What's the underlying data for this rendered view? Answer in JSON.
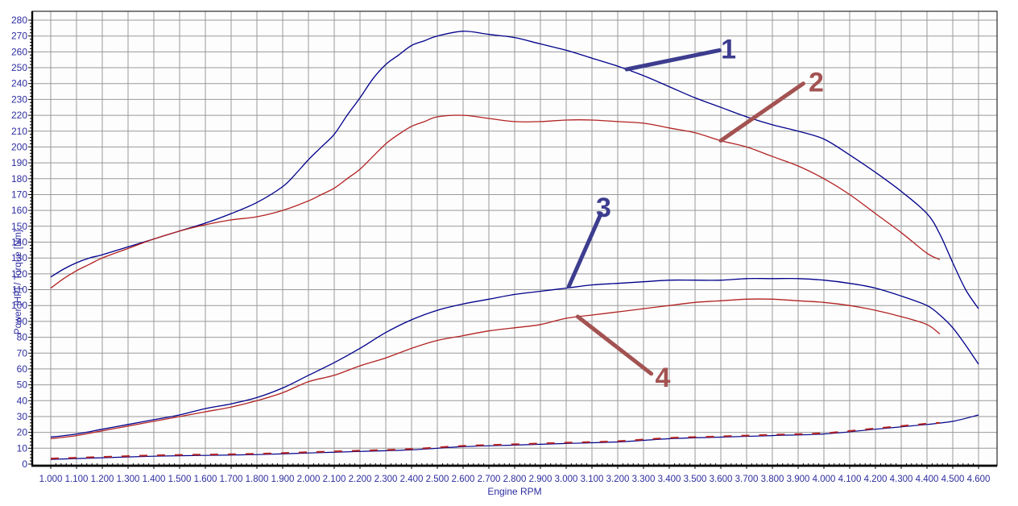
{
  "axes": {
    "x_title": "Engine RPM",
    "y_title": "Power [HP] / Torque [Nm]"
  },
  "colors": {
    "curve_blue": "#00008b",
    "curve_red": "#b22222",
    "label_blue": "#3d3d8f",
    "label_red": "#a35252",
    "axis_text": "#2d2da0",
    "grid": "#999999",
    "border": "#000000"
  },
  "chart_data": {
    "type": "line",
    "title": "",
    "xlabel": "Engine RPM",
    "ylabel": "Power [HP] / Torque [Nm]",
    "xlim": [
      1000,
      4600
    ],
    "ylim": [
      0,
      280
    ],
    "grid": true,
    "legend_position": "none",
    "x_tick_labels": [
      "1.000",
      "1.100",
      "1.200",
      "1.300",
      "1.400",
      "1.500",
      "1.600",
      "1.700",
      "1.800",
      "1.900",
      "2.000",
      "2.100",
      "2.200",
      "2.300",
      "2.400",
      "2.500",
      "2.600",
      "2.700",
      "2.800",
      "2.900",
      "3.000",
      "3.100",
      "3.200",
      "3.300",
      "3.400",
      "3.500",
      "3.600",
      "3.700",
      "3.800",
      "3.900",
      "4.000",
      "4.100",
      "4.200",
      "4.300",
      "4.400",
      "4.500",
      "4.600"
    ],
    "x_tick_values": [
      1000,
      1100,
      1200,
      1300,
      1400,
      1500,
      1600,
      1700,
      1800,
      1900,
      2000,
      2100,
      2200,
      2300,
      2400,
      2500,
      2600,
      2700,
      2800,
      2900,
      3000,
      3100,
      3200,
      3300,
      3400,
      3500,
      3600,
      3700,
      3800,
      3900,
      4000,
      4100,
      4200,
      4300,
      4400,
      4500,
      4600
    ],
    "y_tick_values": [
      0,
      10,
      20,
      30,
      40,
      50,
      60,
      70,
      80,
      90,
      100,
      110,
      120,
      130,
      140,
      150,
      160,
      170,
      180,
      190,
      200,
      210,
      220,
      230,
      240,
      250,
      260,
      270,
      280
    ],
    "x_minor_step": 20,
    "y_minor_step": 2,
    "series": [
      {
        "id": "torque-curve-1",
        "label": "1",
        "color": "#00008b",
        "dash": "",
        "width": 1.3,
        "points": [
          [
            1000,
            118
          ],
          [
            1050,
            123
          ],
          [
            1100,
            127
          ],
          [
            1150,
            130
          ],
          [
            1200,
            132
          ],
          [
            1300,
            137
          ],
          [
            1400,
            142
          ],
          [
            1500,
            147
          ],
          [
            1600,
            152
          ],
          [
            1700,
            158
          ],
          [
            1800,
            165
          ],
          [
            1900,
            175
          ],
          [
            1950,
            183
          ],
          [
            2000,
            192
          ],
          [
            2050,
            200
          ],
          [
            2100,
            208
          ],
          [
            2150,
            220
          ],
          [
            2200,
            231
          ],
          [
            2250,
            243
          ],
          [
            2300,
            252
          ],
          [
            2350,
            258
          ],
          [
            2400,
            264
          ],
          [
            2450,
            267
          ],
          [
            2500,
            270
          ],
          [
            2600,
            273
          ],
          [
            2700,
            271
          ],
          [
            2800,
            269
          ],
          [
            2900,
            265
          ],
          [
            3000,
            261
          ],
          [
            3100,
            256
          ],
          [
            3200,
            251
          ],
          [
            3300,
            245
          ],
          [
            3400,
            238
          ],
          [
            3500,
            231
          ],
          [
            3600,
            225
          ],
          [
            3700,
            219
          ],
          [
            3800,
            214
          ],
          [
            3900,
            210
          ],
          [
            4000,
            205
          ],
          [
            4100,
            195
          ],
          [
            4200,
            184
          ],
          [
            4300,
            172
          ],
          [
            4400,
            158
          ],
          [
            4450,
            145
          ],
          [
            4500,
            127
          ],
          [
            4550,
            110
          ],
          [
            4600,
            98
          ]
        ]
      },
      {
        "id": "torque-curve-2",
        "label": "2",
        "color": "#b22222",
        "dash": "",
        "width": 1.3,
        "points": [
          [
            1000,
            111
          ],
          [
            1050,
            117
          ],
          [
            1100,
            122
          ],
          [
            1150,
            126
          ],
          [
            1200,
            130
          ],
          [
            1300,
            136
          ],
          [
            1400,
            142
          ],
          [
            1500,
            147
          ],
          [
            1600,
            151
          ],
          [
            1700,
            154
          ],
          [
            1800,
            156
          ],
          [
            1900,
            160
          ],
          [
            2000,
            166
          ],
          [
            2050,
            170
          ],
          [
            2100,
            174
          ],
          [
            2150,
            180
          ],
          [
            2200,
            186
          ],
          [
            2250,
            194
          ],
          [
            2300,
            202
          ],
          [
            2350,
            208
          ],
          [
            2400,
            213
          ],
          [
            2450,
            216
          ],
          [
            2500,
            219
          ],
          [
            2600,
            220
          ],
          [
            2700,
            218
          ],
          [
            2800,
            216
          ],
          [
            2900,
            216
          ],
          [
            3000,
            217
          ],
          [
            3100,
            217
          ],
          [
            3200,
            216
          ],
          [
            3300,
            215
          ],
          [
            3400,
            212
          ],
          [
            3500,
            209
          ],
          [
            3600,
            204
          ],
          [
            3700,
            200
          ],
          [
            3800,
            194
          ],
          [
            3900,
            188
          ],
          [
            4000,
            180
          ],
          [
            4100,
            170
          ],
          [
            4200,
            158
          ],
          [
            4300,
            146
          ],
          [
            4400,
            133
          ],
          [
            4450,
            129
          ]
        ]
      },
      {
        "id": "power-curve-3",
        "label": "3",
        "color": "#00008b",
        "dash": "",
        "width": 1.3,
        "points": [
          [
            1000,
            17
          ],
          [
            1100,
            19
          ],
          [
            1200,
            22
          ],
          [
            1300,
            25
          ],
          [
            1400,
            28
          ],
          [
            1500,
            31
          ],
          [
            1600,
            35
          ],
          [
            1700,
            38
          ],
          [
            1800,
            42
          ],
          [
            1900,
            48
          ],
          [
            2000,
            56
          ],
          [
            2100,
            64
          ],
          [
            2200,
            73
          ],
          [
            2300,
            83
          ],
          [
            2400,
            91
          ],
          [
            2500,
            97
          ],
          [
            2600,
            101
          ],
          [
            2700,
            104
          ],
          [
            2800,
            107
          ],
          [
            2900,
            109
          ],
          [
            3000,
            111
          ],
          [
            3100,
            113
          ],
          [
            3200,
            114
          ],
          [
            3300,
            115
          ],
          [
            3400,
            116
          ],
          [
            3500,
            116
          ],
          [
            3600,
            116
          ],
          [
            3700,
            117
          ],
          [
            3800,
            117
          ],
          [
            3900,
            117
          ],
          [
            4000,
            116
          ],
          [
            4100,
            114
          ],
          [
            4200,
            111
          ],
          [
            4300,
            106
          ],
          [
            4400,
            100
          ],
          [
            4450,
            94
          ],
          [
            4500,
            86
          ],
          [
            4550,
            75
          ],
          [
            4600,
            63
          ]
        ]
      },
      {
        "id": "power-curve-4",
        "label": "4",
        "color": "#b22222",
        "dash": "",
        "width": 1.3,
        "points": [
          [
            1000,
            16
          ],
          [
            1100,
            18
          ],
          [
            1200,
            21
          ],
          [
            1300,
            24
          ],
          [
            1400,
            27
          ],
          [
            1500,
            30
          ],
          [
            1600,
            33
          ],
          [
            1700,
            36
          ],
          [
            1800,
            40
          ],
          [
            1900,
            45
          ],
          [
            2000,
            52
          ],
          [
            2100,
            56
          ],
          [
            2200,
            62
          ],
          [
            2300,
            67
          ],
          [
            2400,
            73
          ],
          [
            2500,
            78
          ],
          [
            2600,
            81
          ],
          [
            2700,
            84
          ],
          [
            2800,
            86
          ],
          [
            2900,
            88
          ],
          [
            3000,
            92
          ],
          [
            3100,
            94
          ],
          [
            3200,
            96
          ],
          [
            3300,
            98
          ],
          [
            3400,
            100
          ],
          [
            3500,
            102
          ],
          [
            3600,
            103
          ],
          [
            3700,
            104
          ],
          [
            3800,
            104
          ],
          [
            3900,
            103
          ],
          [
            4000,
            102
          ],
          [
            4100,
            100
          ],
          [
            4200,
            97
          ],
          [
            4300,
            93
          ],
          [
            4400,
            88
          ],
          [
            4450,
            82
          ]
        ]
      },
      {
        "id": "baseline-blue",
        "label": "",
        "color": "#00008b",
        "dash": "",
        "width": 1.2,
        "points": [
          [
            1000,
            3
          ],
          [
            1200,
            4
          ],
          [
            1400,
            5
          ],
          [
            1600,
            5.5
          ],
          [
            1800,
            6
          ],
          [
            2000,
            7
          ],
          [
            2200,
            8
          ],
          [
            2400,
            9
          ],
          [
            2600,
            11
          ],
          [
            2800,
            12
          ],
          [
            3000,
            13
          ],
          [
            3200,
            14
          ],
          [
            3400,
            16
          ],
          [
            3600,
            17
          ],
          [
            3800,
            18
          ],
          [
            4000,
            19
          ],
          [
            4200,
            22
          ],
          [
            4400,
            25
          ],
          [
            4500,
            27
          ],
          [
            4600,
            31
          ]
        ]
      },
      {
        "id": "baseline-red-dashed",
        "label": "",
        "color": "#b22222",
        "dash": "10 12",
        "width": 2,
        "points": [
          [
            1000,
            3.5
          ],
          [
            1200,
            4.5
          ],
          [
            1400,
            5.5
          ],
          [
            1600,
            6
          ],
          [
            1800,
            6.5
          ],
          [
            2000,
            7.5
          ],
          [
            2200,
            8.5
          ],
          [
            2400,
            9.5
          ],
          [
            2600,
            11.5
          ],
          [
            2800,
            12.5
          ],
          [
            3000,
            13.5
          ],
          [
            3200,
            14.5
          ],
          [
            3400,
            16.5
          ],
          [
            3600,
            17.5
          ],
          [
            3800,
            18.5
          ],
          [
            4000,
            19.5
          ],
          [
            4200,
            22.5
          ],
          [
            4400,
            25.5
          ],
          [
            4450,
            26
          ]
        ]
      }
    ],
    "annotations": [
      {
        "text": "1",
        "color": "#3d3d8f",
        "label_at": [
          3630,
          262
        ],
        "line": [
          [
            3595,
            261
          ],
          [
            3235,
            249
          ]
        ]
      },
      {
        "text": "2",
        "color": "#a35252",
        "label_at": [
          3970,
          241
        ],
        "line": [
          [
            3920,
            240
          ],
          [
            3600,
            204
          ]
        ]
      },
      {
        "text": "3",
        "color": "#3d3d8f",
        "label_at": [
          3145,
          162
        ],
        "line": [
          [
            3135,
            158
          ],
          [
            3010,
            112
          ]
        ]
      },
      {
        "text": "4",
        "color": "#a35252",
        "label_at": [
          3375,
          55
        ],
        "line": [
          [
            3330,
            57
          ],
          [
            3045,
            93
          ]
        ]
      }
    ]
  }
}
